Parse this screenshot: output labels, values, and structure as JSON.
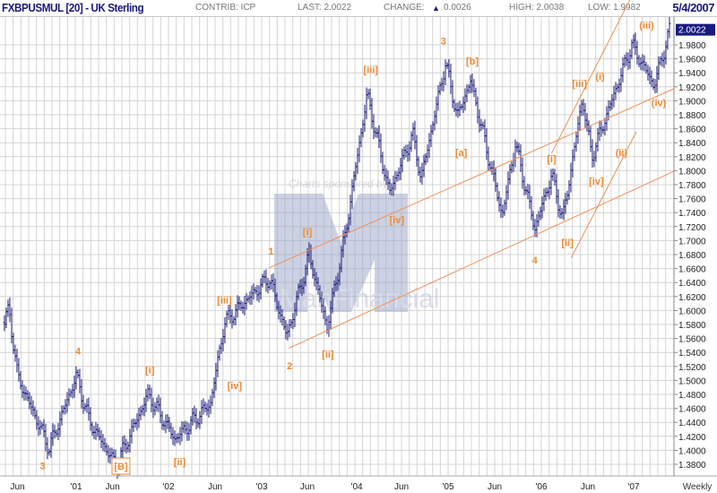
{
  "header": {
    "title": "FXBPUSMUL [20] - UK Sterling",
    "contrib": "CONTRIB: ICP",
    "last": "LAST: 2.0022",
    "change_label": "CHANGE:",
    "change_icon": "triangle-up-icon",
    "change_value": "0.0026",
    "high": "HIGH: 2.0038",
    "low": "LOW: 1.9982",
    "date": "5/4/2007"
  },
  "watermark": {
    "sponsor_text": "Charts sponsored by",
    "logo_text": "ManFinancial"
  },
  "colors": {
    "bars": "#1a1a7a",
    "annotation": "#f08a30",
    "channel": "#f0905a",
    "grid": "#d4d4d4",
    "last_box": "#1a1a80"
  },
  "chart_data": {
    "type": "bar",
    "subtype": "OHLC weekly price bars",
    "title": "FXBPUSMUL [20] - UK Sterling",
    "period_label": "Weekly",
    "ylim": [
      1.37,
      2.02
    ],
    "xlim": [
      2000.2,
      2007.4
    ],
    "grid": true,
    "y_ticks": [
      "1.9800",
      "1.9600",
      "1.9400",
      "1.9200",
      "1.9000",
      "1.8800",
      "1.8600",
      "1.8400",
      "1.8200",
      "1.8000",
      "1.7800",
      "1.7600",
      "1.7400",
      "1.7200",
      "1.7000",
      "1.6800",
      "1.6600",
      "1.6400",
      "1.6200",
      "1.6000",
      "1.5800",
      "1.5600",
      "1.5400",
      "1.5200",
      "1.5000",
      "1.4800",
      "1.4600",
      "1.4400",
      "1.4200",
      "1.4000",
      "1.3800"
    ],
    "last_value": "2.0022",
    "x_ticks": [
      {
        "label": "Jun",
        "t": 2000.38
      },
      {
        "label": "'01",
        "t": 2001.01
      },
      {
        "label": "Jun",
        "t": 2001.4
      },
      {
        "label": "'02",
        "t": 2002.0
      },
      {
        "label": "Jun",
        "t": 2002.5
      },
      {
        "label": "'03",
        "t": 2003.0
      },
      {
        "label": "Jun",
        "t": 2003.49
      },
      {
        "label": "'04",
        "t": 2004.02
      },
      {
        "label": "Jun",
        "t": 2004.5
      },
      {
        "label": "'05",
        "t": 2005.0
      },
      {
        "label": "Jun",
        "t": 2005.5
      },
      {
        "label": "'06",
        "t": 2006.0
      },
      {
        "label": "Jun",
        "t": 2006.5
      },
      {
        "label": "'07",
        "t": 2006.99
      }
    ],
    "price_path": [
      [
        2000.24,
        1.583
      ],
      [
        2000.29,
        1.602
      ],
      [
        2000.38,
        1.506
      ],
      [
        2000.72,
        1.403
      ],
      [
        2001.01,
        1.506
      ],
      [
        2001.15,
        1.442
      ],
      [
        2001.44,
        1.378
      ],
      [
        2001.78,
        1.48
      ],
      [
        2002.07,
        1.416
      ],
      [
        2002.45,
        1.467
      ],
      [
        2002.6,
        1.583
      ],
      [
        2003.08,
        1.647
      ],
      [
        2003.27,
        1.563
      ],
      [
        2003.51,
        1.679
      ],
      [
        2003.7,
        1.576
      ],
      [
        2003.89,
        1.704
      ],
      [
        2004.13,
        1.909
      ],
      [
        2004.37,
        1.768
      ],
      [
        2004.62,
        1.852
      ],
      [
        2004.71,
        1.788
      ],
      [
        2004.97,
        1.954
      ],
      [
        2005.1,
        1.877
      ],
      [
        2005.24,
        1.929
      ],
      [
        2005.58,
        1.736
      ],
      [
        2005.72,
        1.839
      ],
      [
        2005.93,
        1.717
      ],
      [
        2006.11,
        1.794
      ],
      [
        2006.23,
        1.73
      ],
      [
        2006.44,
        1.903
      ],
      [
        2006.54,
        1.82
      ],
      [
        2006.97,
        1.98
      ],
      [
        2007.21,
        1.922
      ],
      [
        2007.38,
        2.002
      ]
    ],
    "channel_lines": [
      {
        "name": "upper-channel",
        "from": [
          2003.08,
          1.661
        ],
        "to": [
          2007.42,
          1.917
        ]
      },
      {
        "name": "lower-channel",
        "from": [
          2003.29,
          1.546
        ],
        "to": [
          2007.42,
          1.799
        ]
      },
      {
        "name": "fan-line-1",
        "from": [
          2006.11,
          1.825
        ],
        "to": [
          2006.96,
          2.047
        ]
      },
      {
        "name": "fan-line-2",
        "from": [
          2006.32,
          1.675
        ],
        "to": [
          2007.02,
          1.856
        ]
      }
    ],
    "annotations": [
      {
        "text": "3",
        "t": 2000.65,
        "p": 1.378
      },
      {
        "text": "4",
        "t": 2001.03,
        "p": 1.542
      },
      {
        "text": "[i]",
        "t": 2001.8,
        "p": 1.515
      },
      {
        "text": "[B]",
        "t": 2001.49,
        "p": 1.352,
        "boxed": true
      },
      {
        "text": "[ii]",
        "t": 2002.12,
        "p": 1.384
      },
      {
        "text": "[iii]",
        "t": 2002.6,
        "p": 1.615
      },
      {
        "text": "[iv]",
        "t": 2002.71,
        "p": 1.493
      },
      {
        "text": "1",
        "t": 2003.1,
        "p": 1.685
      },
      {
        "text": "2",
        "t": 2003.3,
        "p": 1.521
      },
      {
        "text": "[i]",
        "t": 2003.49,
        "p": 1.713
      },
      {
        "text": "[ii]",
        "t": 2003.71,
        "p": 1.538
      },
      {
        "text": "[iii]",
        "t": 2004.17,
        "p": 1.945
      },
      {
        "text": "[iv]",
        "t": 2004.45,
        "p": 1.73
      },
      {
        "text": "3",
        "t": 2004.95,
        "p": 1.986
      },
      {
        "text": "[b]",
        "t": 2005.26,
        "p": 1.957
      },
      {
        "text": "[a]",
        "t": 2005.14,
        "p": 1.826
      },
      {
        "text": "[i]",
        "t": 2006.11,
        "p": 1.817
      },
      {
        "text": "4",
        "t": 2005.93,
        "p": 1.672
      },
      {
        "text": "[ii]",
        "t": 2006.28,
        "p": 1.697
      },
      {
        "text": "[iii]",
        "t": 2006.41,
        "p": 1.925
      },
      {
        "text": "[iv]",
        "t": 2006.59,
        "p": 1.785
      },
      {
        "text": "(i)",
        "t": 2006.63,
        "p": 1.935
      },
      {
        "text": "(ii)",
        "t": 2006.86,
        "p": 1.826
      },
      {
        "text": "(iii)",
        "t": 2007.13,
        "p": 2.013
      },
      {
        "text": "(iv)",
        "t": 2007.26,
        "p": 1.897
      }
    ]
  }
}
